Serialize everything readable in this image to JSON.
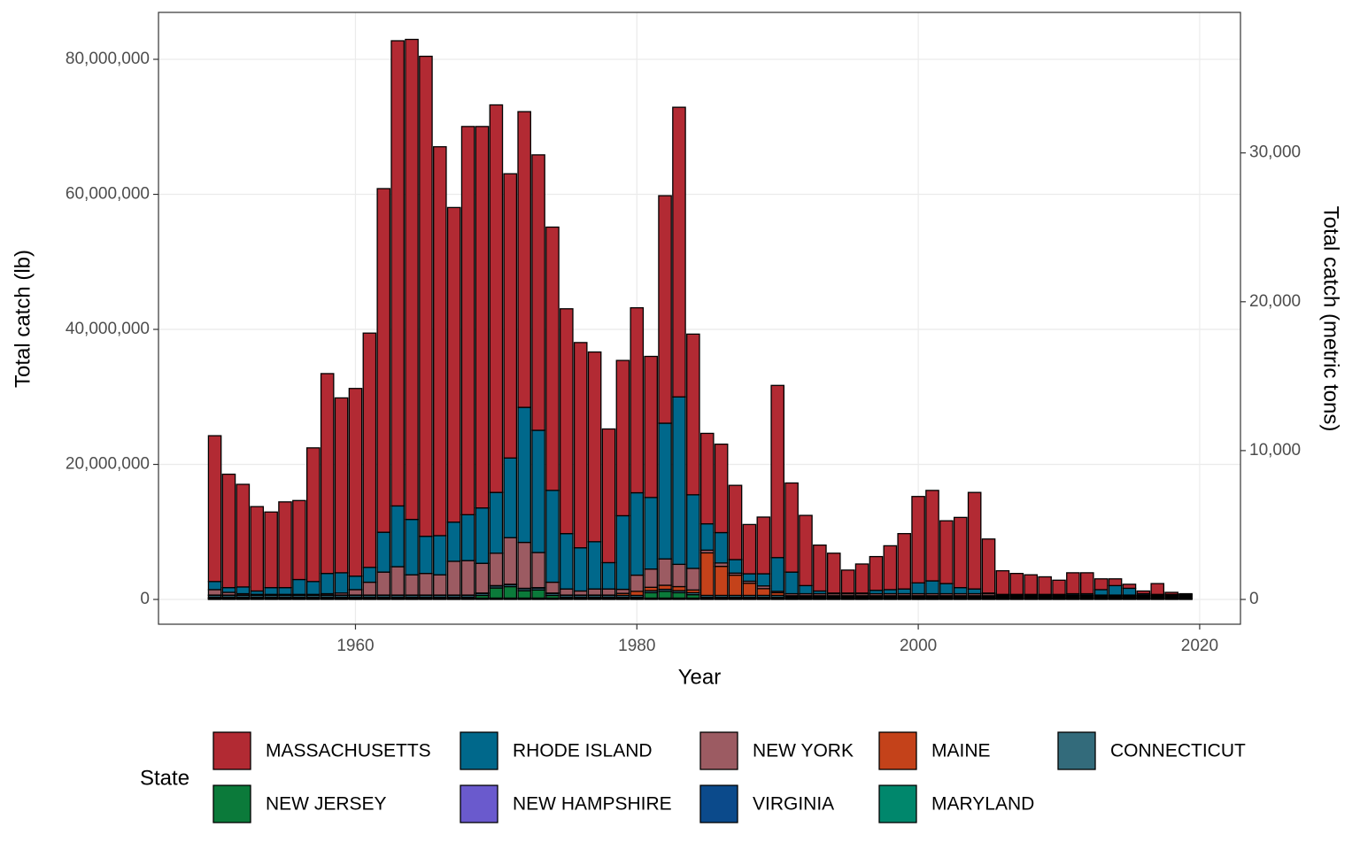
{
  "chart_data": {
    "type": "stacked_bar",
    "x_label": "Year",
    "y_label": "Total catch (lb)",
    "y2_label": "Total catch (metric tons)",
    "legend_title": "State",
    "legend_position": "bottom",
    "grid": true,
    "x": [
      1950,
      1951,
      1952,
      1953,
      1954,
      1955,
      1956,
      1957,
      1958,
      1959,
      1960,
      1961,
      1962,
      1963,
      1964,
      1965,
      1966,
      1967,
      1968,
      1969,
      1970,
      1971,
      1972,
      1973,
      1974,
      1975,
      1976,
      1977,
      1978,
      1979,
      1980,
      1981,
      1982,
      1983,
      1984,
      1985,
      1986,
      1987,
      1988,
      1989,
      1990,
      1991,
      1992,
      1993,
      1994,
      1995,
      1996,
      1997,
      1998,
      1999,
      2000,
      2001,
      2002,
      2003,
      2004,
      2005,
      2006,
      2007,
      2008,
      2009,
      2010,
      2011,
      2012,
      2013,
      2014,
      2015,
      2016,
      2017,
      2018,
      2019
    ],
    "xlim": [
      1946.0,
      2022.9
    ],
    "xticks": [
      1960,
      1980,
      2000,
      2020
    ],
    "ylim": [
      -3670000.0,
      86950000.0
    ],
    "yticks": [
      {
        "value": 0,
        "label": "0"
      },
      {
        "value": 20000000.0,
        "label": "20,000,000"
      },
      {
        "value": 40000000.0,
        "label": "40,000,000"
      },
      {
        "value": 60000000.0,
        "label": "60,000,000"
      },
      {
        "value": 80000000.0,
        "label": "80,000,000"
      }
    ],
    "y2lim": [
      -1665,
      39440
    ],
    "y2ticks": [
      0,
      {
        "value": 10000,
        "label": "10,000"
      },
      {
        "value": 20000,
        "label": "20,000"
      },
      {
        "value": 30000,
        "label": "30,000"
      }
    ],
    "series": [
      {
        "name": "MASSACHUSETTS",
        "color": "#b22a33",
        "values": [
          21600000.0,
          16800000.0,
          15200000.0,
          12500000.0,
          11200000.0,
          12700000.0,
          11700000.0,
          19800000.0,
          29600000.0,
          25900000.0,
          27800000.0,
          34700000.0,
          50900000.0,
          68900000.0,
          71100000.0,
          71100000.0,
          57600000.0,
          46600000.0,
          57500000.0,
          56500000.0,
          57400000.0,
          42100000.0,
          43800000.0,
          40800000.0,
          39000000.0,
          33300000.0,
          30400000.0,
          28100000.0,
          19800000.0,
          23000000.0,
          27400000.0,
          20900000.0,
          33700000.0,
          42900000.0,
          23800000.0,
          13400000.0,
          13100000.0,
          11000000.0,
          7300000.0,
          8400000.0,
          25500000.0,
          13200000.0,
          10400000.0,
          6800000.0,
          5900000.0,
          3400000.0,
          4300000.0,
          5000000.0,
          6500000.0,
          8200000.0,
          12800000.0,
          13400000.0,
          9300000.0,
          10400000.0,
          14300000.0,
          8000000.0,
          3500000.0,
          3100000.0,
          2900000.0,
          2600000.0,
          2100000.0,
          3100000.0,
          3100000.0,
          1600000.0,
          1000000.0,
          600000.0,
          400000.0,
          1600000.0,
          300000.0,
          100000.0
        ]
      },
      {
        "name": "RHODE ISLAND",
        "color": "#00688b",
        "values": [
          1200000.0,
          700000.0,
          1000000.0,
          500000.0,
          1000000.0,
          1000000.0,
          2200000.0,
          1900000.0,
          3000000.0,
          3000000.0,
          2000000.0,
          2200000.0,
          5900000.0,
          9000000.0,
          8200000.0,
          5500000.0,
          5800000.0,
          5800000.0,
          6800000.0,
          8200000.0,
          9000000.0,
          11800000.0,
          20000000.0,
          18100000.0,
          13600000.0,
          8200000.0,
          6400000.0,
          7000000.0,
          3900000.0,
          10900000.0,
          12200000.0,
          10600000.0,
          20100000.0,
          24800000.0,
          10900000.0,
          3900000.0,
          4500000.0,
          2000000.0,
          1100000.0,
          1800000.0,
          5000000.0,
          3200000.0,
          1200000.0,
          400000.0,
          100000.0,
          100000.0,
          100000.0,
          500000.0,
          600000.0,
          700000.0,
          1600000.0,
          1900000.0,
          1500000.0,
          900000.0,
          700000.0,
          100000.0,
          100000.0,
          100000.0,
          100000.0,
          100000.0,
          100000.0,
          200000.0,
          200000.0,
          800000.0,
          1400000.0,
          1000000.0,
          200000.0,
          100000.0,
          100000.0,
          100000.0
        ]
      },
      {
        "name": "NEW YORK",
        "color": "#9c5b62",
        "values": [
          800000.0,
          400000.0,
          200000.0,
          100000.0,
          100000.0,
          100000.0,
          100000.0,
          100000.0,
          200000.0,
          300000.0,
          800000.0,
          1900000.0,
          3400000.0,
          4200000.0,
          3000000.0,
          3200000.0,
          3000000.0,
          5000000.0,
          5100000.0,
          4400000.0,
          4800000.0,
          6900000.0,
          6800000.0,
          5200000.0,
          1600000.0,
          900000.0,
          600000.0,
          900000.0,
          900000.0,
          600000.0,
          2400000.0,
          2700000.0,
          3900000.0,
          3300000.0,
          3200000.0,
          400000.0,
          500000.0,
          300000.0,
          300000.0,
          400000.0,
          200000.0,
          300000.0,
          300000.0,
          300000.0,
          300000.0,
          300000.0,
          300000.0,
          300000.0,
          300000.0,
          300000.0,
          300000.0,
          300000.0,
          300000.0,
          300000.0,
          300000.0,
          300000.0,
          100000.0,
          100000.0,
          100000.0,
          100000.0,
          100000.0,
          100000.0,
          100000.0,
          100000.0,
          100000.0,
          100000.0,
          100000.0,
          100000.0,
          100000.0,
          100000.0
        ]
      },
      {
        "name": "MAINE",
        "color": "#c4421a",
        "values": [
          50000.0,
          50000.0,
          50000.0,
          50000.0,
          50000.0,
          50000.0,
          50000.0,
          50000.0,
          50000.0,
          50000.0,
          50000.0,
          50000.0,
          50000.0,
          50000.0,
          50000.0,
          50000.0,
          50000.0,
          50000.0,
          50000.0,
          50000.0,
          50000.0,
          50000.0,
          50000.0,
          50000.0,
          50000.0,
          50000.0,
          50000.0,
          50000.0,
          50000.0,
          300000.0,
          600000.0,
          500000.0,
          600000.0,
          600000.0,
          400000.0,
          6300000.0,
          4300000.0,
          3000000.0,
          1800000.0,
          1000000.0,
          400000.0,
          100000.0,
          100000.0,
          100000.0,
          100000.0,
          100000.0,
          100000.0,
          100000.0,
          100000.0,
          100000.0,
          100000.0,
          100000.0,
          100000.0,
          100000.0,
          100000.0,
          100000.0,
          100000.0,
          100000.0,
          100000.0,
          100000.0,
          100000.0,
          100000.0,
          100000.0,
          100000.0,
          100000.0,
          100000.0,
          100000.0,
          100000.0,
          100000.0,
          100000.0
        ]
      },
      {
        "name": "CONNECTICUT",
        "color": "#336b7b",
        "values": [
          300000.0,
          300000.0,
          300000.0,
          300000.0,
          300000.0,
          300000.0,
          300000.0,
          300000.0,
          300000.0,
          300000.0,
          300000.0,
          300000.0,
          300000.0,
          300000.0,
          300000.0,
          300000.0,
          300000.0,
          300000.0,
          300000.0,
          300000.0,
          300000.0,
          300000.0,
          300000.0,
          300000.0,
          300000.0,
          300000.0,
          300000.0,
          300000.0,
          300000.0,
          300000.0,
          300000.0,
          300000.0,
          300000.0,
          300000.0,
          300000.0,
          300000.0,
          300000.0,
          300000.0,
          300000.0,
          300000.0,
          300000.0,
          150000.0,
          150000.0,
          150000.0,
          150000.0,
          150000.0,
          150000.0,
          150000.0,
          150000.0,
          150000.0,
          150000.0,
          150000.0,
          150000.0,
          150000.0,
          150000.0,
          150000.0,
          150000.0,
          150000.0,
          150000.0,
          150000.0,
          150000.0,
          150000.0,
          150000.0,
          150000.0,
          150000.0,
          150000.0,
          150000.0,
          150000.0,
          150000.0,
          150000.0
        ]
      },
      {
        "name": "NEW JERSEY",
        "color": "#0b7a3a",
        "values": [
          100000.0,
          100000.0,
          100000.0,
          100000.0,
          100000.0,
          100000.0,
          100000.0,
          100000.0,
          100000.0,
          100000.0,
          100000.0,
          100000.0,
          100000.0,
          100000.0,
          100000.0,
          100000.0,
          100000.0,
          100000.0,
          100000.0,
          400000.0,
          1500000.0,
          1700000.0,
          1100000.0,
          1200000.0,
          400000.0,
          100000.0,
          100000.0,
          100000.0,
          100000.0,
          100000.0,
          100000.0,
          800000.0,
          1000000.0,
          800000.0,
          500000.0,
          100000.0,
          100000.0,
          100000.0,
          100000.0,
          100000.0,
          100000.0,
          100000.0,
          100000.0,
          100000.0,
          100000.0,
          100000.0,
          100000.0,
          100000.0,
          100000.0,
          100000.0,
          100000.0,
          100000.0,
          100000.0,
          100000.0,
          100000.0,
          100000.0,
          100000.0,
          100000.0,
          100000.0,
          100000.0,
          100000.0,
          100000.0,
          100000.0,
          100000.0,
          100000.0,
          100000.0,
          100000.0,
          100000.0,
          100000.0,
          100000.0
        ]
      },
      {
        "name": "NEW HAMPSHIRE",
        "color": "#6a5acd",
        "values": [
          50000.0,
          50000.0,
          50000.0,
          50000.0,
          50000.0,
          50000.0,
          50000.0,
          50000.0,
          50000.0,
          50000.0,
          50000.0,
          50000.0,
          50000.0,
          50000.0,
          50000.0,
          50000.0,
          50000.0,
          50000.0,
          50000.0,
          50000.0,
          50000.0,
          50000.0,
          50000.0,
          50000.0,
          50000.0,
          50000.0,
          50000.0,
          50000.0,
          50000.0,
          50000.0,
          50000.0,
          50000.0,
          50000.0,
          50000.0,
          50000.0,
          50000.0,
          50000.0,
          50000.0,
          50000.0,
          50000.0,
          50000.0,
          50000.0,
          50000.0,
          50000.0,
          50000.0,
          50000.0,
          50000.0,
          50000.0,
          50000.0,
          50000.0,
          50000.0,
          50000.0,
          50000.0,
          50000.0,
          50000.0,
          50000.0,
          50000.0,
          50000.0,
          50000.0,
          50000.0,
          50000.0,
          50000.0,
          50000.0,
          50000.0,
          50000.0,
          50000.0,
          50000.0,
          50000.0,
          50000.0,
          50000.0
        ]
      },
      {
        "name": "VIRGINIA",
        "color": "#0b4a8b",
        "values": [
          100000.0,
          100000.0,
          100000.0,
          100000.0,
          100000.0,
          100000.0,
          100000.0,
          100000.0,
          100000.0,
          100000.0,
          100000.0,
          100000.0,
          100000.0,
          100000.0,
          100000.0,
          100000.0,
          100000.0,
          100000.0,
          100000.0,
          100000.0,
          100000.0,
          100000.0,
          100000.0,
          100000.0,
          100000.0,
          100000.0,
          100000.0,
          100000.0,
          100000.0,
          100000.0,
          100000.0,
          100000.0,
          100000.0,
          100000.0,
          100000.0,
          100000.0,
          100000.0,
          100000.0,
          100000.0,
          100000.0,
          100000.0,
          100000.0,
          100000.0,
          100000.0,
          100000.0,
          100000.0,
          100000.0,
          100000.0,
          100000.0,
          100000.0,
          100000.0,
          100000.0,
          100000.0,
          100000.0,
          100000.0,
          100000.0,
          100000.0,
          100000.0,
          100000.0,
          100000.0,
          100000.0,
          100000.0,
          100000.0,
          100000.0,
          100000.0,
          100000.0,
          100000.0,
          100000.0,
          100000.0,
          100000.0
        ]
      },
      {
        "name": "MARYLAND",
        "color": "#00876c",
        "values": [
          50000.0,
          50000.0,
          50000.0,
          50000.0,
          50000.0,
          50000.0,
          50000.0,
          50000.0,
          50000.0,
          50000.0,
          50000.0,
          50000.0,
          50000.0,
          50000.0,
          50000.0,
          50000.0,
          50000.0,
          50000.0,
          50000.0,
          50000.0,
          50000.0,
          50000.0,
          50000.0,
          50000.0,
          50000.0,
          50000.0,
          50000.0,
          50000.0,
          50000.0,
          50000.0,
          50000.0,
          50000.0,
          50000.0,
          50000.0,
          50000.0,
          50000.0,
          50000.0,
          50000.0,
          50000.0,
          50000.0,
          50000.0,
          50000.0,
          50000.0,
          50000.0,
          50000.0,
          50000.0,
          50000.0,
          50000.0,
          50000.0,
          50000.0,
          50000.0,
          50000.0,
          50000.0,
          50000.0,
          50000.0,
          50000.0,
          50000.0,
          50000.0,
          50000.0,
          50000.0,
          50000.0,
          50000.0,
          50000.0,
          50000.0,
          50000.0,
          50000.0,
          50000.0,
          50000.0,
          50000.0,
          50000.0
        ]
      }
    ]
  }
}
